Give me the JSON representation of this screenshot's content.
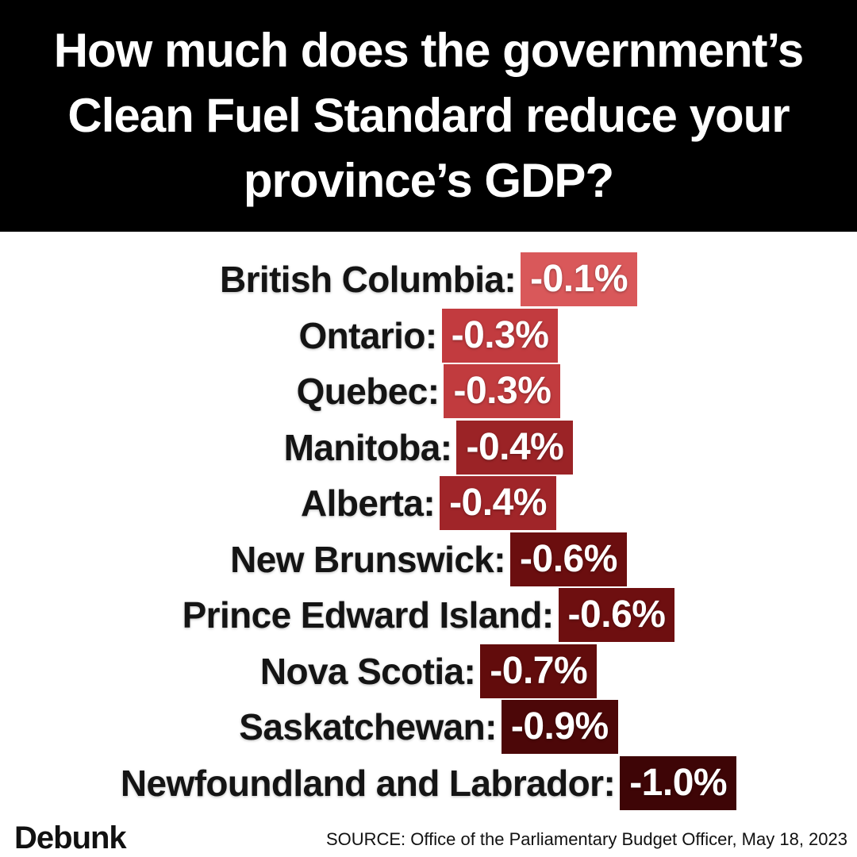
{
  "header": {
    "title": "How much does the government’s Clean Fuel Standard reduce your province’s GDP?"
  },
  "provinces": [
    {
      "label": "British Columbia:",
      "value": "-0.1%",
      "color": "#d9585a"
    },
    {
      "label": "Ontario:",
      "value": "-0.3%",
      "color": "#c23b3f"
    },
    {
      "label": "Quebec:",
      "value": "-0.3%",
      "color": "#c13b3e"
    },
    {
      "label": "Manitoba:",
      "value": "-0.4%",
      "color": "#9b2326"
    },
    {
      "label": "Alberta:",
      "value": "-0.4%",
      "color": "#a02529"
    },
    {
      "label": "New Brunswick:",
      "value": "-0.6%",
      "color": "#6b0e0f"
    },
    {
      "label": "Prince Edward Island:",
      "value": "-0.6%",
      "color": "#6e0f10"
    },
    {
      "label": "Nova Scotia:",
      "value": "-0.7%",
      "color": "#620c0c"
    },
    {
      "label": "Saskatchewan:",
      "value": "-0.9%",
      "color": "#4c0708"
    },
    {
      "label": "Newfoundland and Labrador:",
      "value": "-1.0%",
      "color": "#3e0506"
    }
  ],
  "footer": {
    "logo": "Debunk",
    "source": "SOURCE: Office of the Parliamentary Budget Officer, May 18, 2023"
  }
}
